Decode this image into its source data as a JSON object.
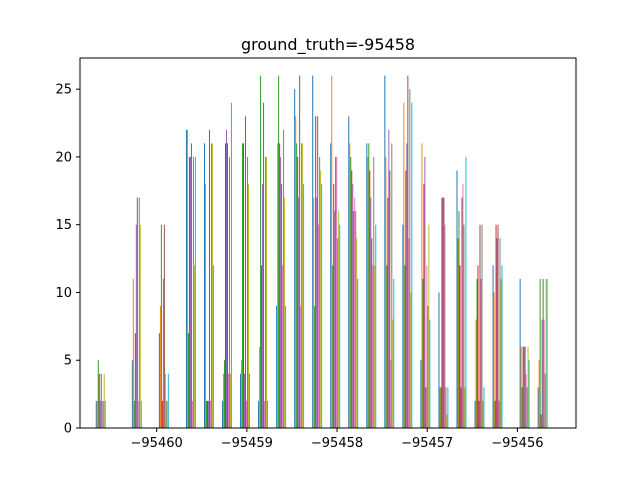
{
  "chart_data": {
    "type": "bar",
    "title": "ground_truth=-95458",
    "xlabel": "",
    "ylabel": "",
    "xlim": [
      -95460.85,
      -95455.35
    ],
    "ylim": [
      0,
      27.3
    ],
    "x_ticks": [
      -95460,
      -95459,
      -95458,
      -95457,
      -95456
    ],
    "x_tick_labels": [
      "−95460",
      "−95459",
      "−95458",
      "−95457",
      "−95456"
    ],
    "y_ticks": [
      0,
      5,
      10,
      15,
      20,
      25
    ],
    "y_tick_labels": [
      "0",
      "5",
      "10",
      "15",
      "20",
      "25"
    ],
    "grid": false,
    "bar_width": 0.011,
    "series_colors": [
      "#1f77b4",
      "#ff7f0e",
      "#2ca02c",
      "#d62728",
      "#9467bd",
      "#8c564b",
      "#e377c2",
      "#7f7f7f",
      "#bcbd22",
      "#17becf"
    ],
    "clusters": [
      {
        "x": -95460.62,
        "values": [
          2,
          2,
          5,
          4,
          2,
          4,
          2,
          2,
          4,
          2
        ]
      },
      {
        "x": -95460.22,
        "values": [
          5,
          11,
          2,
          7,
          15,
          17,
          2,
          17,
          15,
          2
        ]
      },
      {
        "x": -95459.92,
        "values": [
          7,
          9,
          15,
          2,
          11,
          15,
          4,
          2,
          2,
          4
        ]
      },
      {
        "x": -95459.62,
        "values": [
          22,
          22,
          7,
          20,
          20,
          21,
          2,
          20,
          12,
          20
        ]
      },
      {
        "x": -95459.42,
        "values": [
          21,
          18,
          2,
          2,
          2,
          22,
          2,
          21,
          21,
          12
        ]
      },
      {
        "x": -95459.22,
        "values": [
          2,
          4,
          5,
          21,
          22,
          21,
          4,
          20,
          4,
          24
        ]
      },
      {
        "x": -95459.02,
        "values": [
          4,
          5,
          21,
          21,
          4,
          23,
          2,
          20,
          18,
          4
        ]
      },
      {
        "x": -95458.82,
        "values": [
          2,
          6,
          26,
          12,
          18,
          24,
          2,
          20,
          20,
          2
        ]
      },
      {
        "x": -95458.62,
        "values": [
          9,
          21,
          26,
          21,
          20,
          18,
          12,
          22,
          17,
          9
        ]
      },
      {
        "x": -95458.42,
        "values": [
          25,
          23,
          21,
          20,
          17,
          26,
          9,
          21,
          21,
          18
        ]
      },
      {
        "x": -95458.22,
        "values": [
          26,
          17,
          9,
          23,
          17,
          23,
          15,
          20,
          19,
          18
        ]
      },
      {
        "x": -95458.02,
        "values": [
          21,
          26,
          12,
          18,
          16,
          20,
          20,
          14,
          16,
          15
        ]
      },
      {
        "x": -95457.82,
        "values": [
          23,
          21,
          20,
          19,
          18,
          16,
          17,
          16,
          14,
          11
        ]
      },
      {
        "x": -95457.62,
        "values": [
          21,
          20,
          21,
          19,
          17,
          14,
          12,
          20,
          12,
          15
        ]
      },
      {
        "x": -95457.42,
        "values": [
          26,
          20,
          12,
          17,
          22,
          19,
          5,
          21,
          8,
          11
        ]
      },
      {
        "x": -95457.22,
        "values": [
          15,
          24,
          12,
          19,
          21,
          26,
          14,
          25,
          10,
          24
        ]
      },
      {
        "x": -95457.02,
        "values": [
          5,
          21,
          11,
          18,
          20,
          3,
          12,
          9,
          15,
          8
        ]
      },
      {
        "x": -95456.82,
        "values": [
          10,
          3,
          3,
          17,
          17,
          17,
          15,
          3,
          1,
          3
        ]
      },
      {
        "x": -95456.62,
        "values": [
          19,
          14,
          16,
          12,
          3,
          17,
          18,
          15,
          3,
          20
        ]
      },
      {
        "x": -95456.42,
        "values": [
          2,
          8,
          11,
          12,
          2,
          15,
          11,
          15,
          2,
          3
        ]
      },
      {
        "x": -95456.22,
        "values": [
          12,
          10,
          2,
          15,
          14,
          15,
          2,
          14,
          11,
          12
        ]
      },
      {
        "x": -95455.92,
        "values": [
          11,
          6,
          3,
          6,
          6,
          6,
          4,
          3,
          6,
          5
        ]
      },
      {
        "x": -95455.72,
        "values": [
          3,
          5,
          11,
          1,
          8,
          11,
          8,
          4,
          11,
          11
        ]
      }
    ]
  }
}
